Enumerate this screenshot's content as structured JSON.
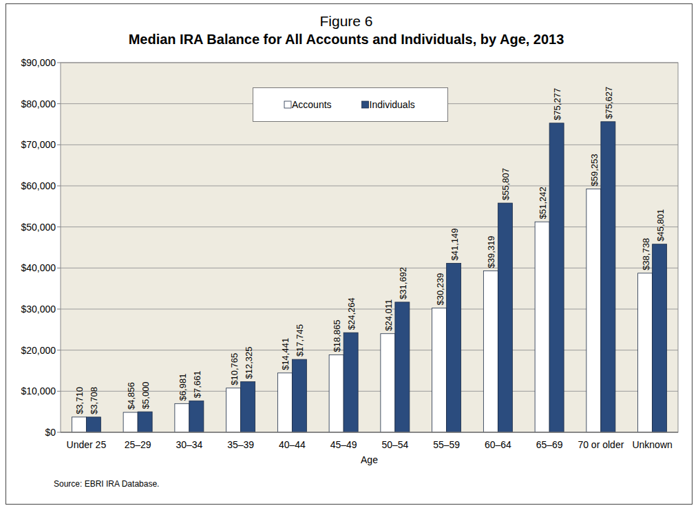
{
  "chart_data": {
    "type": "bar",
    "title": "Figure 6",
    "subtitle": "Median IRA Balance for All Accounts and Individuals, by Age, 2013",
    "x_label": "Age",
    "annotations": [
      "Source: EBRI IRA Database."
    ],
    "categories": [
      "Under 25",
      "25–29",
      "30–34",
      "35–39",
      "40–44",
      "45–49",
      "50–54",
      "55–59",
      "60–64",
      "65–69",
      "70 or older",
      "Unknown"
    ],
    "series": [
      {
        "name": "Accounts",
        "color": "#ffffff",
        "values": [
          3710,
          4856,
          6981,
          10765,
          14441,
          18865,
          24011,
          30239,
          39319,
          51242,
          59253,
          38738
        ],
        "value_labels": [
          "$3,710",
          "$4,856",
          "$6,981",
          "$10,765",
          "$14,441",
          "$18,865",
          "$24,011",
          "$30,239",
          "$39,319",
          "$51,242",
          "$59,253",
          "$38,738"
        ]
      },
      {
        "name": "Individuals",
        "color": "#2b4c7e",
        "values": [
          3708,
          5000,
          7661,
          12325,
          17745,
          24264,
          31692,
          41149,
          55807,
          75277,
          75627,
          45801
        ],
        "value_labels": [
          "$3,708",
          "$5,000",
          "$7,661",
          "$12,325",
          "$17,745",
          "$24,264",
          "$31,692",
          "$41,149",
          "$55,807",
          "$75,277",
          "$75,627",
          "$45,801"
        ]
      }
    ],
    "ylim": [
      0,
      90000
    ],
    "yticks": [
      {
        "value": 0,
        "label": "$0"
      },
      {
        "value": 10000,
        "label": "$10,000"
      },
      {
        "value": 20000,
        "label": "$20,000"
      },
      {
        "value": 30000,
        "label": "$30,000"
      },
      {
        "value": 40000,
        "label": "$40,000"
      },
      {
        "value": 50000,
        "label": "$50,000"
      },
      {
        "value": 60000,
        "label": "$60,000"
      },
      {
        "value": 70000,
        "label": "$70,000"
      },
      {
        "value": 80000,
        "label": "$80,000"
      },
      {
        "value": 90000,
        "label": "$90,000"
      }
    ],
    "grid": true,
    "legend": "top",
    "data_labels": true
  }
}
